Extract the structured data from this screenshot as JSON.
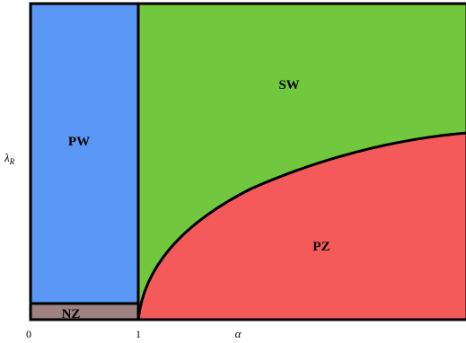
{
  "regions": {
    "pw": {
      "label": "PW",
      "color": "#5b97f5"
    },
    "sw": {
      "label": "SW",
      "color": "#71c73d"
    },
    "pz": {
      "label": "PZ",
      "color": "#f55a5a"
    },
    "nz": {
      "label": "NZ",
      "color": "#9e8181"
    }
  },
  "axes": {
    "x_label": "α",
    "y_label": "λ",
    "y_label_sub": "R",
    "x_ticks": [
      "0",
      "1"
    ]
  }
}
